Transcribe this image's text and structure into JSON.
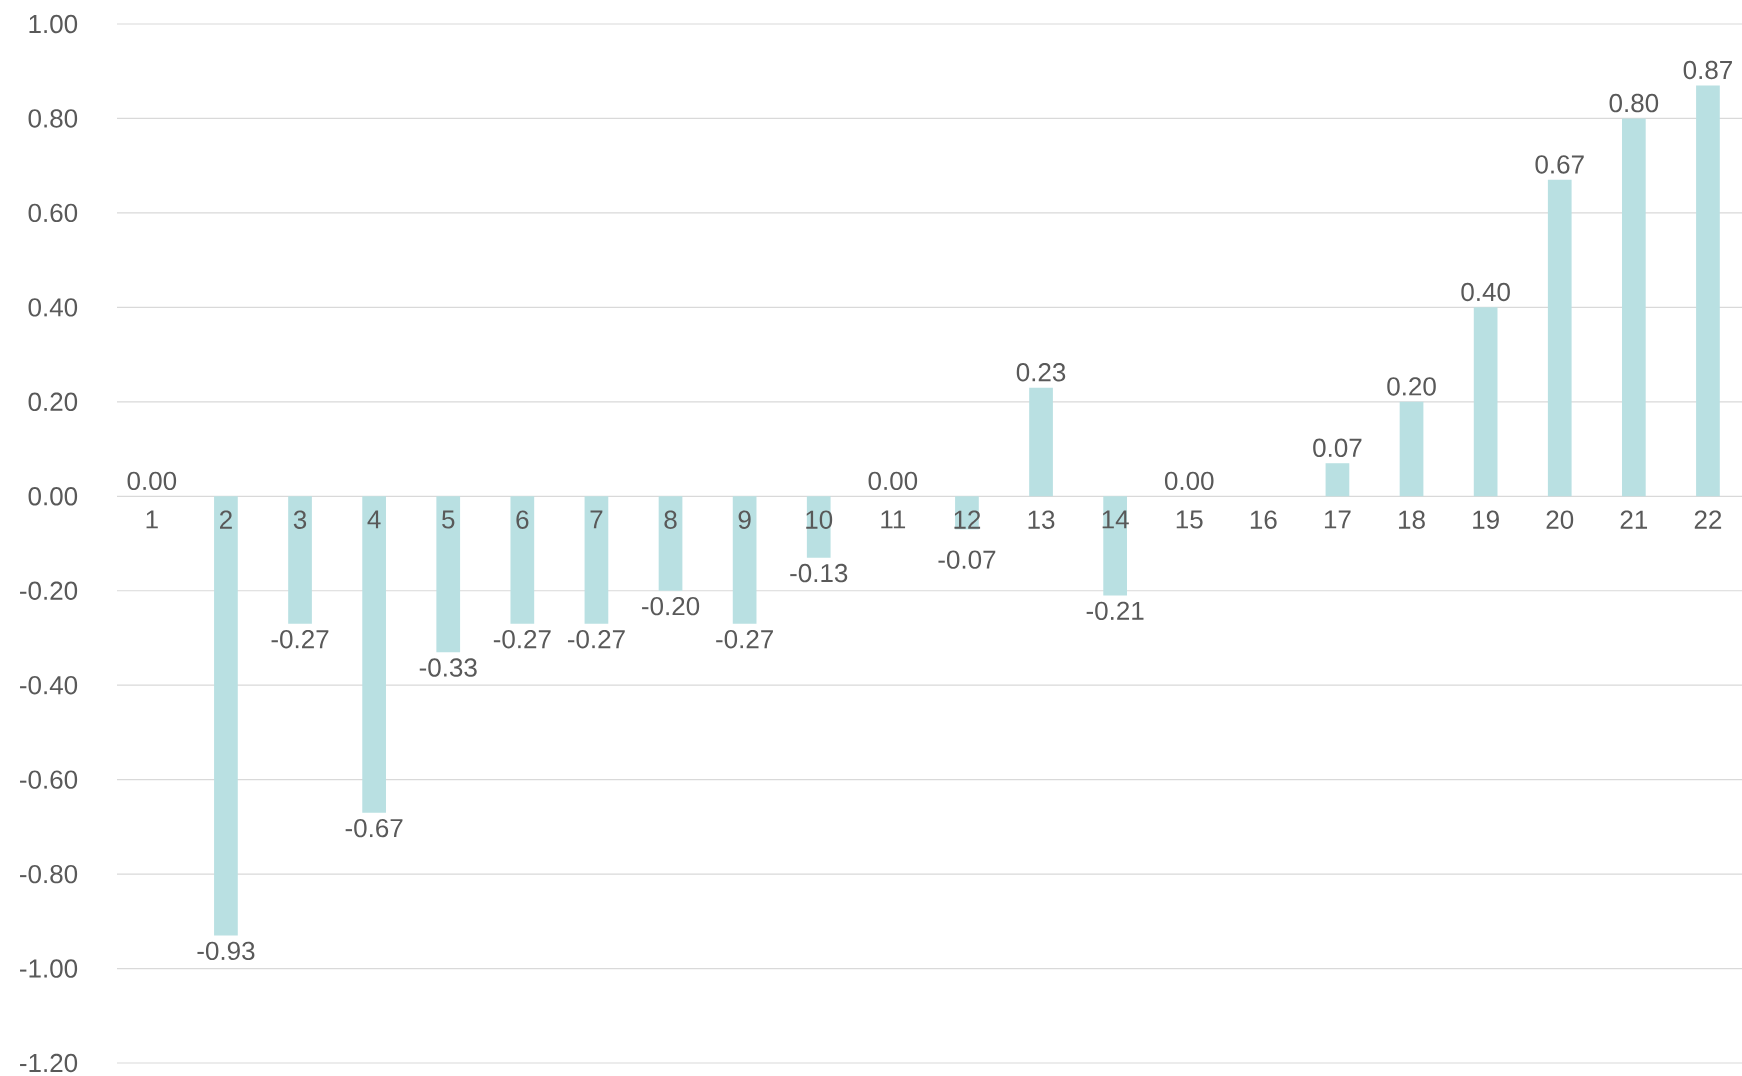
{
  "chart_data": {
    "type": "bar",
    "categories": [
      "1",
      "2",
      "3",
      "4",
      "5",
      "6",
      "7",
      "8",
      "9",
      "10",
      "11",
      "12",
      "13",
      "14",
      "15",
      "16",
      "17",
      "18",
      "19",
      "20",
      "21",
      "22"
    ],
    "values": [
      0.0,
      -0.93,
      -0.27,
      -0.67,
      -0.33,
      -0.27,
      -0.27,
      -0.2,
      -0.27,
      -0.13,
      0.0,
      -0.07,
      0.23,
      -0.21,
      0.0,
      null,
      0.07,
      0.2,
      0.4,
      0.67,
      0.8,
      0.87
    ],
    "value_labels": [
      "0.00",
      "-0.93",
      "-0.27",
      "-0.67",
      "-0.33",
      "-0.27",
      "-0.27",
      "-0.20",
      "-0.27",
      "-0.13",
      "0.00",
      "-0.07",
      "0.23",
      "-0.21",
      "0.00",
      null,
      "0.07",
      "0.20",
      "0.40",
      "0.67",
      "0.80",
      "0.87"
    ],
    "color": "#b9e0e2",
    "ylim": [
      -1.2,
      1.0
    ],
    "yticks": [
      {
        "value": -1.2,
        "label": "-1.20"
      },
      {
        "value": -1.0,
        "label": "-1.00"
      },
      {
        "value": -0.8,
        "label": "-0.80"
      },
      {
        "value": -0.6,
        "label": "-0.60"
      },
      {
        "value": -0.4,
        "label": "-0.40"
      },
      {
        "value": -0.2,
        "label": "-0.20"
      },
      {
        "value": 0,
        "label": "0.00"
      },
      {
        "value": 0.2,
        "label": "0.20"
      },
      {
        "value": 0.4,
        "label": "0.40"
      },
      {
        "value": 0.6,
        "label": "0.60"
      },
      {
        "value": 0.8,
        "label": "0.80"
      },
      {
        "value": 1.0,
        "label": "1.00"
      }
    ],
    "grid": "y"
  }
}
